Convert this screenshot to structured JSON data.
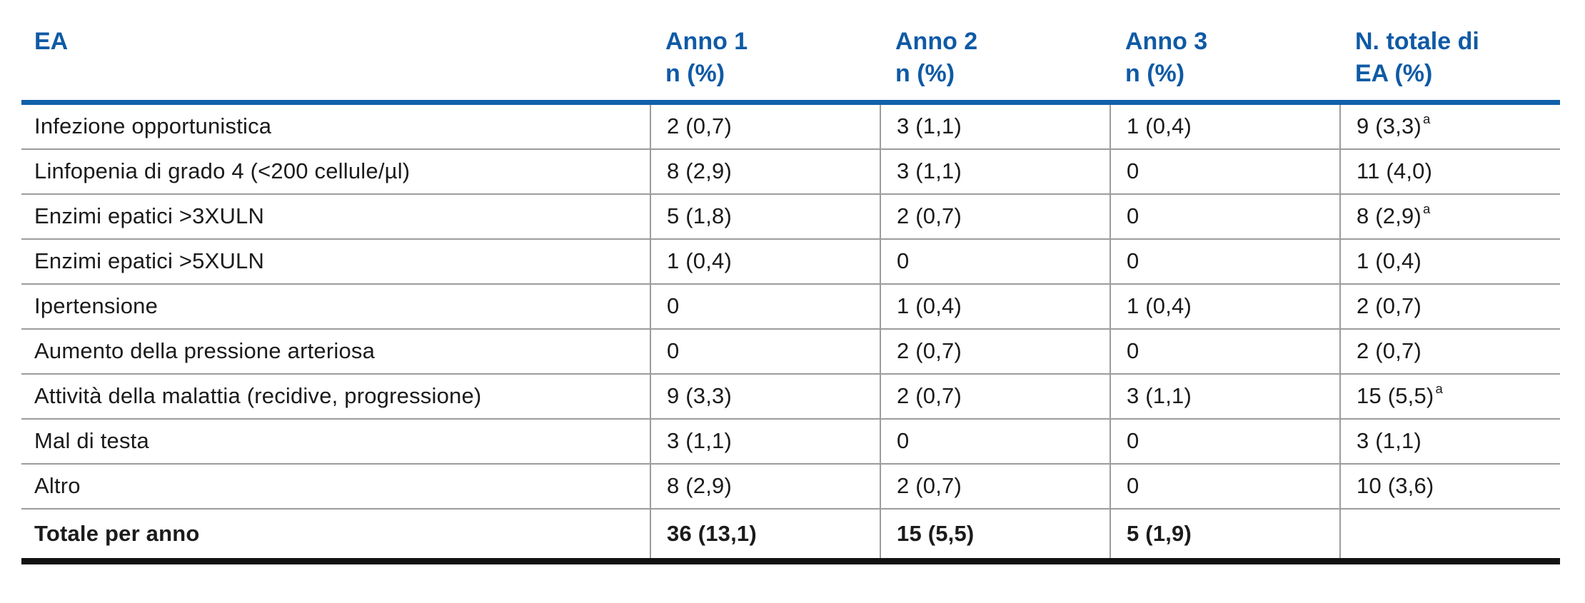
{
  "table": {
    "accent_color": "#1160aa",
    "header": {
      "col0": "EA",
      "columns": [
        {
          "line1": "Anno 1",
          "line2": "n (%)"
        },
        {
          "line1": "Anno 2",
          "line2": "n (%)"
        },
        {
          "line1": "Anno 3",
          "line2": "n (%)"
        },
        {
          "line1": "N. totale di",
          "line2": "EA (%)"
        }
      ]
    },
    "rows": [
      {
        "label": "Infezione opportunistica",
        "anno1": "2 (0,7)",
        "anno2": "3 (1,1)",
        "anno3": "1 (0,4)",
        "total": "9 (3,3)",
        "total_sup": "a"
      },
      {
        "label": "Linfopenia di grado 4 (<200 cellule/µl)",
        "anno1": "8 (2,9)",
        "anno2": "3 (1,1)",
        "anno3": "0",
        "total": "11 (4,0)",
        "total_sup": ""
      },
      {
        "label": "Enzimi epatici >3XULN",
        "anno1": "5 (1,8)",
        "anno2": "2 (0,7)",
        "anno3": "0",
        "total": "8 (2,9)",
        "total_sup": "a"
      },
      {
        "label": "Enzimi epatici >5XULN",
        "anno1": "1 (0,4)",
        "anno2": "0",
        "anno3": "0",
        "total": "1 (0,4)",
        "total_sup": ""
      },
      {
        "label": "Ipertensione",
        "anno1": "0",
        "anno2": "1 (0,4)",
        "anno3": "1 (0,4)",
        "total": "2 (0,7)",
        "total_sup": ""
      },
      {
        "label": "Aumento della pressione arteriosa",
        "anno1": "0",
        "anno2": "2 (0,7)",
        "anno3": "0",
        "total": "2 (0,7)",
        "total_sup": ""
      },
      {
        "label": "Attività della malattia (recidive, progressione)",
        "anno1": "9 (3,3)",
        "anno2": "2 (0,7)",
        "anno3": "3 (1,1)",
        "total": "15 (5,5)",
        "total_sup": "a"
      },
      {
        "label": "Mal di testa",
        "anno1": "3 (1,1)",
        "anno2": "0",
        "anno3": "0",
        "total": "3 (1,1)",
        "total_sup": ""
      },
      {
        "label": "Altro",
        "anno1": "8 (2,9)",
        "anno2": "2 (0,7)",
        "anno3": "0",
        "total": "10 (3,6)",
        "total_sup": ""
      }
    ],
    "footer": {
      "label": "Totale per anno",
      "anno1": "36 (13,1)",
      "anno2": "15 (5,5)",
      "anno3": "5 (1,9)",
      "total": ""
    }
  }
}
